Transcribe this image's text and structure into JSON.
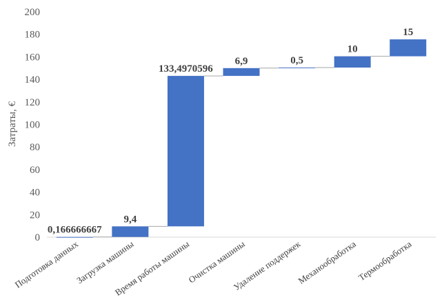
{
  "chart_data": {
    "type": "bar",
    "subtype": "waterfall",
    "ylabel": "Затраты, €",
    "ylim": [
      0,
      200
    ],
    "yticks": [
      0,
      20,
      40,
      60,
      80,
      100,
      120,
      140,
      160,
      180,
      200
    ],
    "grid": false,
    "legend": "none",
    "bar_color": "#4472c4",
    "categories": [
      "Подготовка данных",
      "Загрузка машины",
      "Время работы машины",
      "Очистка машины",
      "Удаление поддержек",
      "Механообработка",
      "Термообработка"
    ],
    "values": [
      0.166666667,
      9.4,
      133.4970596,
      6.9,
      0.5,
      10,
      15
    ],
    "data_labels": [
      "0,166666667",
      "9,4",
      "133,4970596",
      "6,9",
      "0,5",
      "10",
      "15"
    ]
  }
}
